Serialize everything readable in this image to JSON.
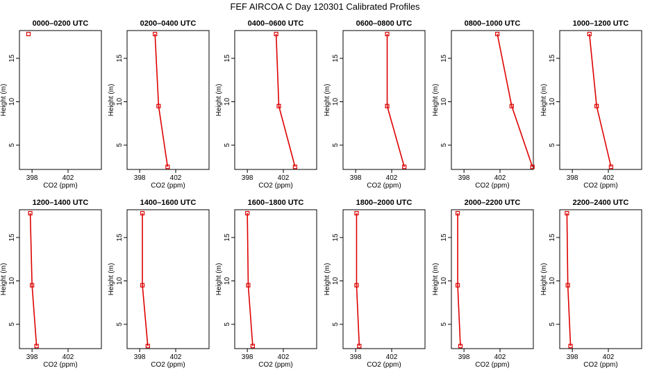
{
  "figure": {
    "title": "FEF AIRCOA C  Day 120301  Calibrated Profiles"
  },
  "chart_data": {
    "type": "line",
    "panels_count": 12,
    "series_color": "#dd0000",
    "xlabel": "CO2 (ppm)",
    "ylabel": "Height (m)",
    "xlim": [
      396.6,
      405.7
    ],
    "ylim": [
      2.2,
      18.2
    ],
    "x_ticks": [
      398,
      402
    ],
    "y_ticks": [
      5,
      10,
      15
    ],
    "panels": [
      {
        "title": "0000–0200 UTC",
        "x": [
          397.6
        ],
        "y": [
          17.8
        ]
      },
      {
        "title": "0200–0400 UTC",
        "x": [
          399.7,
          400.1,
          401.1
        ],
        "y": [
          17.8,
          9.5,
          2.5
        ]
      },
      {
        "title": "0400–0600 UTC",
        "x": [
          401.2,
          401.5,
          403.3
        ],
        "y": [
          17.8,
          9.5,
          2.5
        ]
      },
      {
        "title": "0600–0800 UTC",
        "x": [
          401.5,
          401.5,
          403.4
        ],
        "y": [
          17.8,
          9.5,
          2.5
        ]
      },
      {
        "title": "0800–1000 UTC",
        "x": [
          401.7,
          403.3,
          405.6
        ],
        "y": [
          17.8,
          9.5,
          2.5
        ]
      },
      {
        "title": "1000–1200 UTC",
        "x": [
          399.9,
          400.7,
          402.3
        ],
        "y": [
          17.8,
          9.5,
          2.5
        ]
      },
      {
        "title": "1200–1400 UTC",
        "x": [
          397.8,
          398.0,
          398.5
        ],
        "y": [
          17.8,
          9.5,
          2.5
        ]
      },
      {
        "title": "1400–1600 UTC",
        "x": [
          398.3,
          398.3,
          398.9
        ],
        "y": [
          17.8,
          9.5,
          2.5
        ]
      },
      {
        "title": "1600–1800 UTC",
        "x": [
          398.0,
          398.1,
          398.6
        ],
        "y": [
          17.8,
          9.5,
          2.5
        ]
      },
      {
        "title": "1800–2000 UTC",
        "x": [
          398.1,
          398.1,
          398.4
        ],
        "y": [
          17.8,
          9.5,
          2.5
        ]
      },
      {
        "title": "2000–2200 UTC",
        "x": [
          397.3,
          397.3,
          397.6
        ],
        "y": [
          17.8,
          9.5,
          2.5
        ]
      },
      {
        "title": "2200–2400 UTC",
        "x": [
          397.4,
          397.5,
          397.8
        ],
        "y": [
          17.8,
          9.5,
          2.5
        ]
      }
    ]
  }
}
